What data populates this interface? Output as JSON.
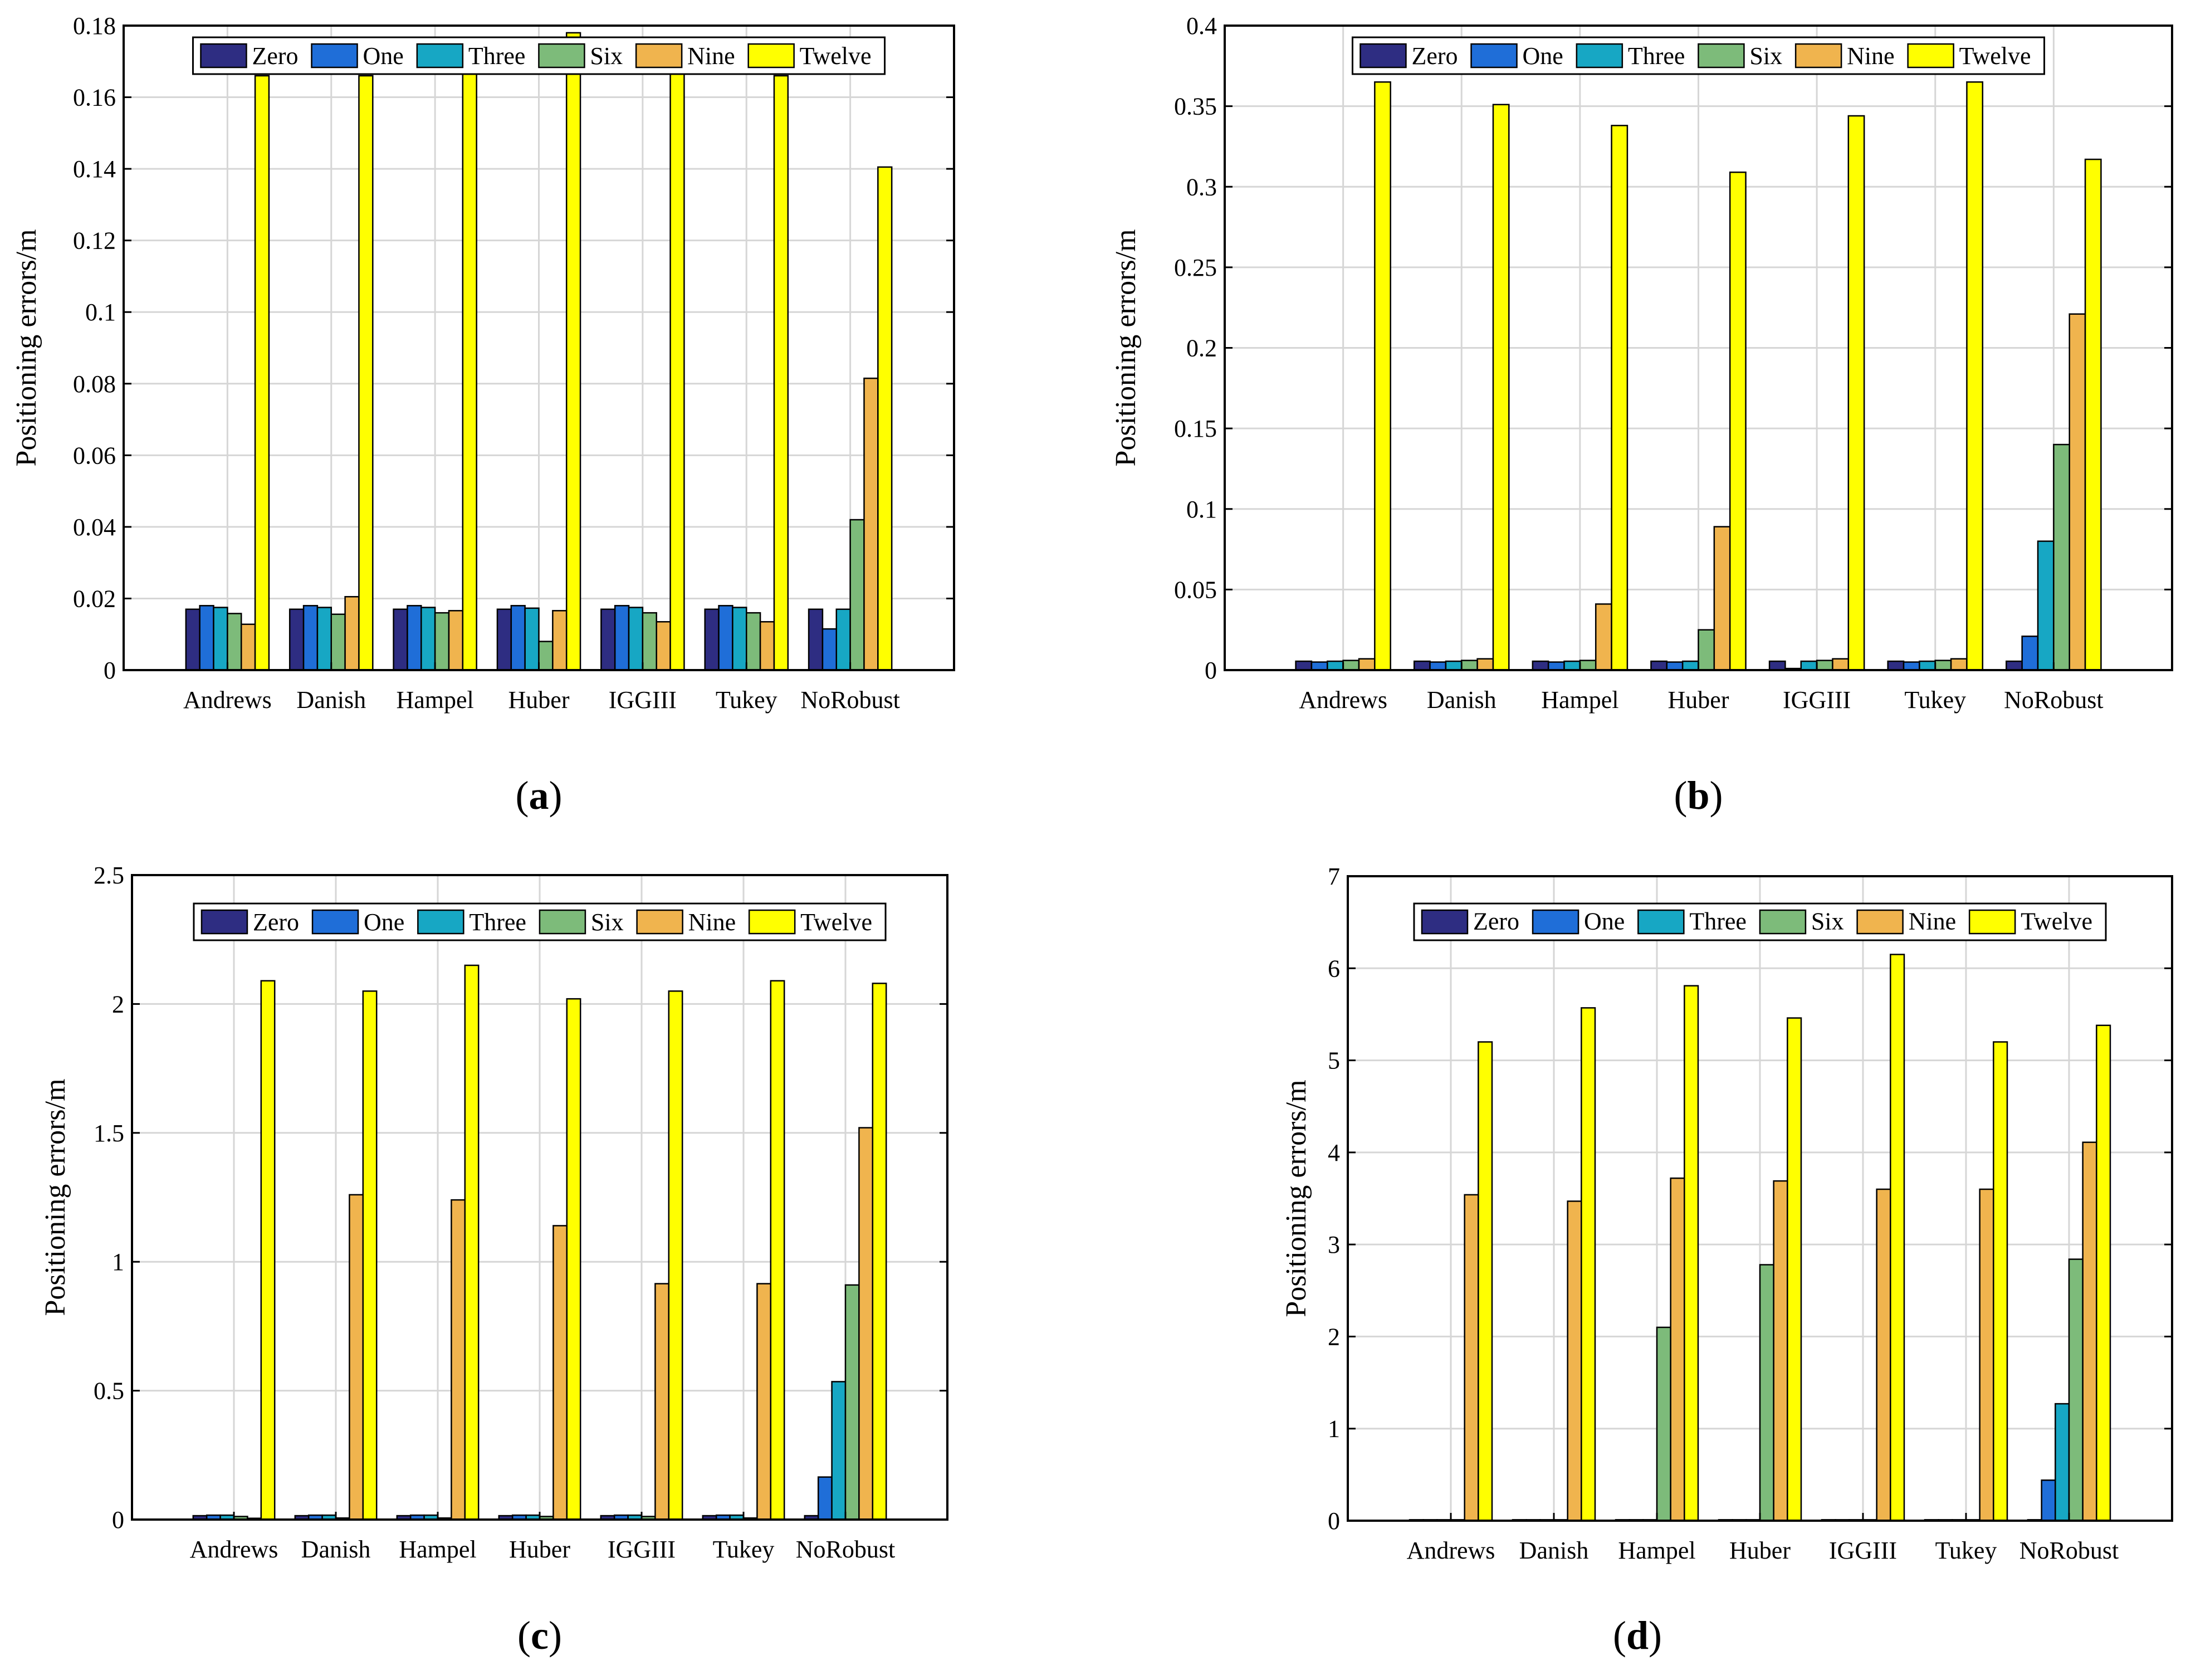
{
  "colors": {
    "Zero": "#2e2d82",
    "One": "#1f6ed8",
    "Three": "#17a7c4",
    "Six": "#7dbb7a",
    "Nine": "#f0b44e",
    "Twelve": "#ffff00"
  },
  "chart_data": [
    {
      "type": "bar",
      "panel_label": "(a)",
      "caption_letter": "a",
      "ylabel": "Positioning errors/m",
      "xlabel": "",
      "categories": [
        "Andrews",
        "Danish",
        "Hampel",
        "Huber",
        "IGGIII",
        "Tukey",
        "NoRobust"
      ],
      "ylim": [
        0,
        0.18
      ],
      "yticks": [
        0,
        0.02,
        0.04,
        0.06,
        0.08,
        0.1,
        0.12,
        0.14,
        0.16,
        0.18
      ],
      "ytick_labels": [
        "0",
        "0.02",
        "0.04",
        "0.06",
        "0.08",
        "0.1",
        "0.12",
        "0.14",
        "0.16",
        "0.18"
      ],
      "grid": true,
      "legend": "top",
      "series": [
        {
          "name": "Zero",
          "values": [
            0.017,
            0.017,
            0.017,
            0.017,
            0.017,
            0.017,
            0.017
          ]
        },
        {
          "name": "One",
          "values": [
            0.018,
            0.018,
            0.018,
            0.018,
            0.018,
            0.018,
            0.0115
          ]
        },
        {
          "name": "Three",
          "values": [
            0.0175,
            0.0175,
            0.0175,
            0.0173,
            0.0175,
            0.0175,
            0.017
          ]
        },
        {
          "name": "Six",
          "values": [
            0.0158,
            0.0156,
            0.016,
            0.008,
            0.016,
            0.016,
            0.042
          ]
        },
        {
          "name": "Nine",
          "values": [
            0.0128,
            0.0205,
            0.0166,
            0.0166,
            0.0135,
            0.0135,
            0.0815
          ]
        },
        {
          "name": "Twelve",
          "values": [
            0.166,
            0.166,
            0.1735,
            0.178,
            0.1735,
            0.166,
            0.1405
          ]
        }
      ]
    },
    {
      "type": "bar",
      "panel_label": "(b)",
      "caption_letter": "b",
      "ylabel": "Positioning errors/m",
      "xlabel": "",
      "categories": [
        "Andrews",
        "Danish",
        "Hampel",
        "Huber",
        "IGGIII",
        "Tukey",
        "NoRobust"
      ],
      "ylim": [
        0,
        0.4
      ],
      "yticks": [
        0,
        0.05,
        0.1,
        0.15,
        0.2,
        0.25,
        0.3,
        0.35,
        0.4
      ],
      "ytick_labels": [
        "0",
        "0.05",
        "0.1",
        "0.15",
        "0.2",
        "0.25",
        "0.3",
        "0.35",
        "0.4"
      ],
      "grid": true,
      "legend": "top",
      "series": [
        {
          "name": "Zero",
          "values": [
            0.0055,
            0.0055,
            0.0055,
            0.0055,
            0.0055,
            0.0055,
            0.0055
          ]
        },
        {
          "name": "One",
          "values": [
            0.005,
            0.005,
            0.005,
            0.005,
            0.001,
            0.005,
            0.021
          ]
        },
        {
          "name": "Three",
          "values": [
            0.0055,
            0.0055,
            0.0055,
            0.0055,
            0.0055,
            0.0055,
            0.08
          ]
        },
        {
          "name": "Six",
          "values": [
            0.006,
            0.006,
            0.006,
            0.025,
            0.006,
            0.006,
            0.14
          ]
        },
        {
          "name": "Nine",
          "values": [
            0.007,
            0.007,
            0.041,
            0.089,
            0.007,
            0.007,
            0.221
          ]
        },
        {
          "name": "Twelve",
          "values": [
            0.365,
            0.351,
            0.338,
            0.309,
            0.344,
            0.365,
            0.317
          ]
        }
      ]
    },
    {
      "type": "bar",
      "panel_label": "(c)",
      "caption_letter": "c",
      "ylabel": "Positioning errors/m",
      "xlabel": "",
      "categories": [
        "Andrews",
        "Danish",
        "Hampel",
        "Huber",
        "IGGIII",
        "Tukey",
        "NoRobust"
      ],
      "ylim": [
        0,
        2.5
      ],
      "yticks": [
        0,
        0.5,
        1,
        1.5,
        2,
        2.5
      ],
      "ytick_labels": [
        "0",
        "0.5",
        "1",
        "1.5",
        "2",
        "2.5"
      ],
      "grid": true,
      "legend": "top",
      "series": [
        {
          "name": "Zero",
          "values": [
            0.015,
            0.015,
            0.015,
            0.015,
            0.015,
            0.015,
            0.015
          ]
        },
        {
          "name": "One",
          "values": [
            0.017,
            0.017,
            0.017,
            0.017,
            0.017,
            0.017,
            0.165
          ]
        },
        {
          "name": "Three",
          "values": [
            0.017,
            0.017,
            0.017,
            0.017,
            0.017,
            0.017,
            0.535
          ]
        },
        {
          "name": "Six",
          "values": [
            0.012,
            0.006,
            0.006,
            0.012,
            0.012,
            0.006,
            0.91
          ]
        },
        {
          "name": "Nine",
          "values": [
            0.005,
            1.26,
            1.24,
            1.14,
            0.915,
            0.915,
            1.52
          ]
        },
        {
          "name": "Twelve",
          "values": [
            2.09,
            2.05,
            2.15,
            2.02,
            2.05,
            2.09,
            2.08
          ]
        }
      ]
    },
    {
      "type": "bar",
      "panel_label": "(d)",
      "caption_letter": "d",
      "ylabel": "Positioning errors/m",
      "xlabel": "",
      "categories": [
        "Andrews",
        "Danish",
        "Hampel",
        "Huber",
        "IGGIII",
        "Tukey",
        "NoRobust"
      ],
      "ylim": [
        0,
        7
      ],
      "yticks": [
        0,
        1,
        2,
        3,
        4,
        5,
        6,
        7
      ],
      "ytick_labels": [
        "0",
        "1",
        "2",
        "3",
        "4",
        "5",
        "6",
        "7"
      ],
      "grid": true,
      "legend": "top",
      "series": [
        {
          "name": "Zero",
          "values": [
            0.01,
            0.01,
            0.01,
            0.01,
            0.01,
            0.01,
            0.01
          ]
        },
        {
          "name": "One",
          "values": [
            0.01,
            0.01,
            0.01,
            0.01,
            0.01,
            0.01,
            0.44
          ]
        },
        {
          "name": "Three",
          "values": [
            0.01,
            0.01,
            0.01,
            0.01,
            0.01,
            0.01,
            1.27
          ]
        },
        {
          "name": "Six",
          "values": [
            0.01,
            0.01,
            2.1,
            2.78,
            0.01,
            0.01,
            2.84
          ]
        },
        {
          "name": "Nine",
          "values": [
            3.54,
            3.47,
            3.72,
            3.69,
            3.6,
            3.6,
            4.11
          ]
        },
        {
          "name": "Twelve",
          "values": [
            5.2,
            5.57,
            5.81,
            5.46,
            6.15,
            5.2,
            5.38
          ]
        }
      ]
    }
  ]
}
